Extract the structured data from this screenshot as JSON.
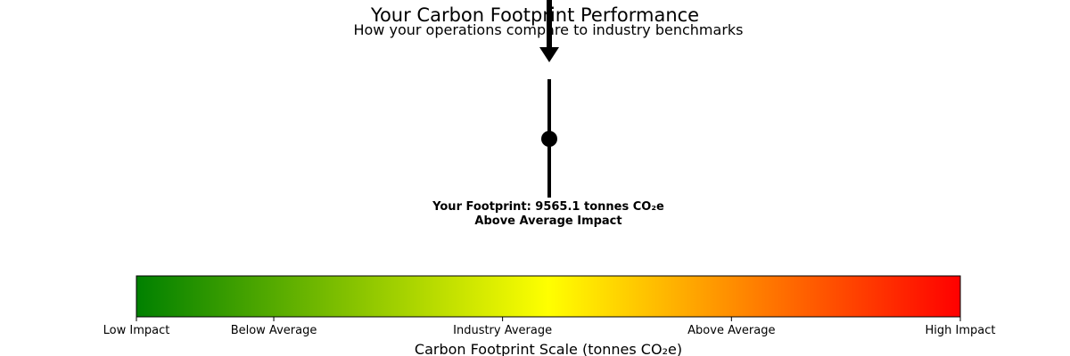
{
  "chart_data": {
    "type": "gauge",
    "title": "Your Carbon Footprint Performance",
    "subtitle": "How your operations compare to industry benchmarks",
    "value": 9565.1,
    "value_label": "Your Footprint: 9565.1 tonnes CO₂e",
    "category_label": "Above Average Impact",
    "scale_ticks": [
      "Low Impact",
      "Below Average",
      "Industry Average",
      "Above Average",
      "High Impact"
    ],
    "scale_tick_positions": [
      0,
      0.1667,
      0.4444,
      0.7222,
      1.0
    ],
    "value_position": 0.5,
    "colormap": [
      "#008000",
      "#ffff00",
      "#ff0000"
    ],
    "xlabel": "Carbon Footprint Scale (tonnes CO₂e)"
  }
}
